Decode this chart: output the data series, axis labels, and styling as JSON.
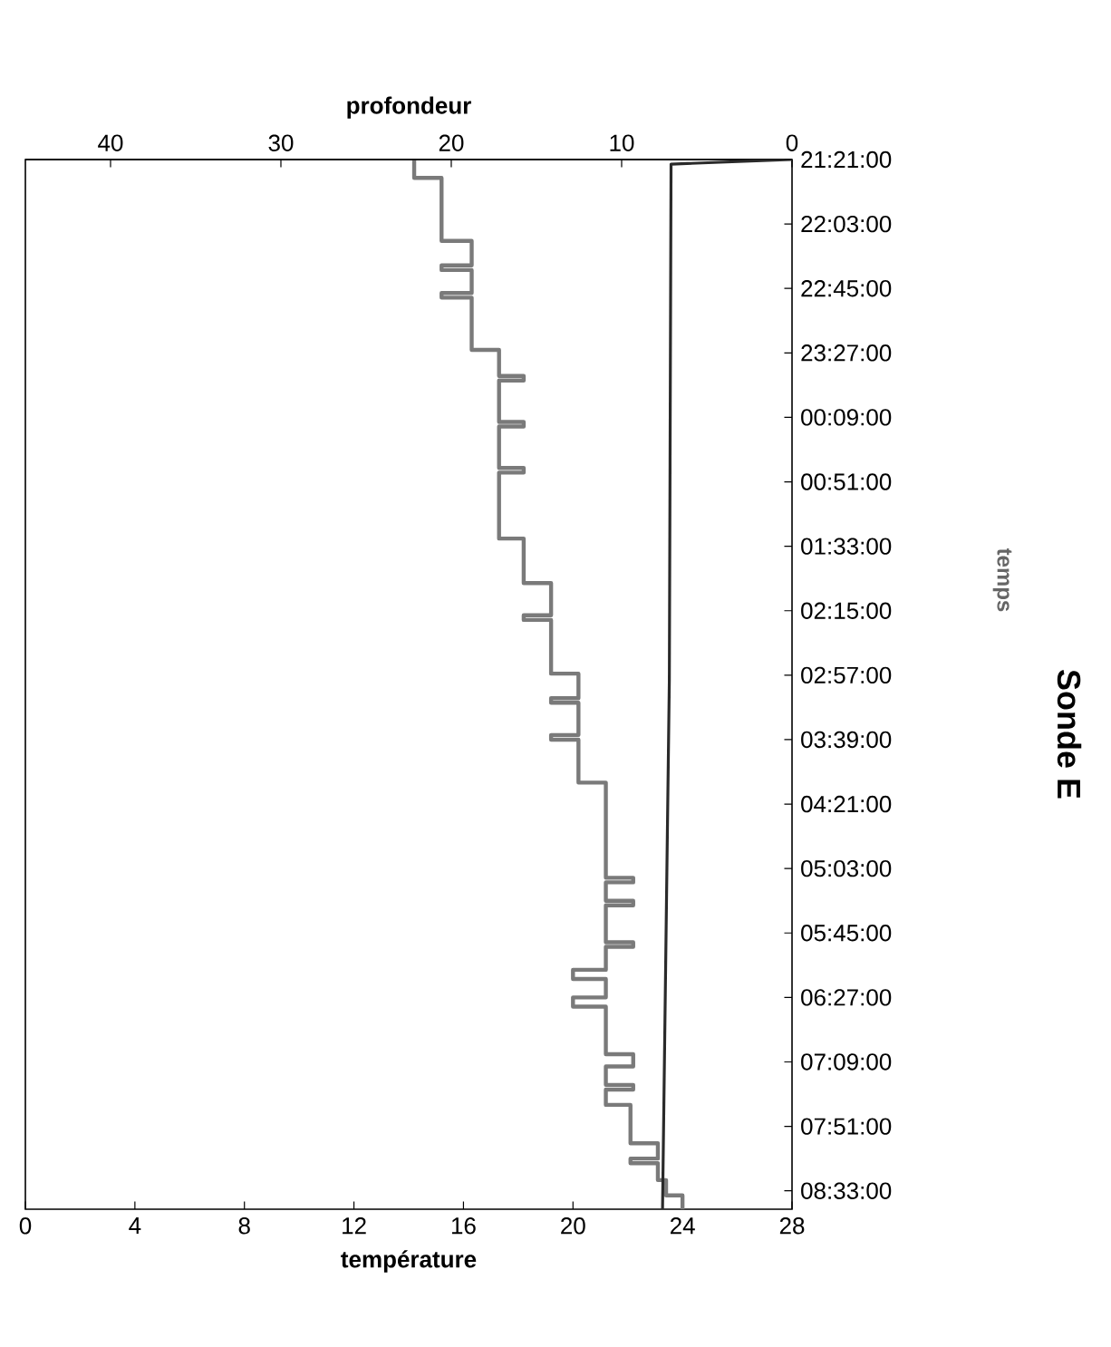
{
  "chart_data": {
    "type": "step",
    "orientation": "horizontal",
    "title": "Sonde E",
    "xlabel": "température",
    "x2label": "profondeur",
    "ylabel": "temps",
    "xlim": [
      0,
      28
    ],
    "xticks": [
      0,
      4,
      8,
      12,
      16,
      20,
      24,
      28
    ],
    "x2lim": [
      45,
      0
    ],
    "x2ticks": [
      0,
      10,
      20,
      30,
      40
    ],
    "ylim": [
      "2000-01-02T08:45:00",
      "2000-01-01T21:21:00"
    ],
    "yticks": [
      {
        "value": "2000-01-01T21:21:00",
        "label": "21:21:00"
      },
      {
        "value": "2000-01-01T22:03:00",
        "label": "22:03:00"
      },
      {
        "value": "2000-01-01T22:45:00",
        "label": "22:45:00"
      },
      {
        "value": "2000-01-01T23:27:00",
        "label": "23:27:00"
      },
      {
        "value": "2000-01-02T00:09:00",
        "label": "00:09:00"
      },
      {
        "value": "2000-01-02T00:51:00",
        "label": "00:51:00"
      },
      {
        "value": "2000-01-02T01:33:00",
        "label": "01:33:00"
      },
      {
        "value": "2000-01-02T02:15:00",
        "label": "02:15:00"
      },
      {
        "value": "2000-01-02T02:57:00",
        "label": "02:57:00"
      },
      {
        "value": "2000-01-02T03:39:00",
        "label": "03:39:00"
      },
      {
        "value": "2000-01-02T04:21:00",
        "label": "04:21:00"
      },
      {
        "value": "2000-01-02T05:03:00",
        "label": "05:03:00"
      },
      {
        "value": "2000-01-02T05:45:00",
        "label": "05:45:00"
      },
      {
        "value": "2000-01-02T06:27:00",
        "label": "06:27:00"
      },
      {
        "value": "2000-01-02T07:09:00",
        "label": "07:09:00"
      },
      {
        "value": "2000-01-02T07:51:00",
        "label": "07:51:00"
      },
      {
        "value": "2000-01-02T08:33:00",
        "label": "08:33:00"
      }
    ],
    "series": [
      {
        "color": "#7a7a7a",
        "values": [
          14.2,
          15.2,
          16.3,
          15.2,
          16.3,
          15.2,
          16.3,
          17.3,
          18.2,
          17.3,
          18.2,
          17.3,
          18.2,
          17.3,
          18.2,
          19.2,
          18.2,
          19.2,
          20.2,
          19.2,
          20.2,
          19.2,
          20.2,
          21.2,
          22.2,
          21.2,
          22.2,
          21.2,
          22.2,
          21.2,
          20.0,
          21.2,
          20.0,
          21.2,
          22.2,
          21.2,
          22.2,
          21.2,
          22.1,
          23.1,
          22.1,
          23.1,
          23.4,
          24.0,
          24.0
        ],
        "x": [
          "2000-01-01T21:21:00",
          "2000-01-01T21:33:00",
          "2000-01-01T22:14:00",
          "2000-01-01T22:30:00",
          "2000-01-01T22:33:00",
          "2000-01-01T22:48:00",
          "2000-01-01T22:51:00",
          "2000-01-01T23:25:00",
          "2000-01-01T23:42:00",
          "2000-01-01T23:45:00",
          "2000-01-02T00:12:00",
          "2000-01-02T00:15:00",
          "2000-01-02T00:42:00",
          "2000-01-02T00:45:00",
          "2000-01-02T01:28:00",
          "2000-01-02T01:57:00",
          "2000-01-02T02:18:00",
          "2000-01-02T02:21:00",
          "2000-01-02T02:56:00",
          "2000-01-02T03:12:00",
          "2000-01-02T03:15:00",
          "2000-01-02T03:36:00",
          "2000-01-02T03:39:00",
          "2000-01-02T04:07:00",
          "2000-01-02T05:09:00",
          "2000-01-02T05:12:00",
          "2000-01-02T05:24:00",
          "2000-01-02T05:27:00",
          "2000-01-02T05:51:00",
          "2000-01-02T05:54:00",
          "2000-01-02T06:09:00",
          "2000-01-02T06:15:00",
          "2000-01-02T06:27:00",
          "2000-01-02T06:33:00",
          "2000-01-02T07:04:00",
          "2000-01-02T07:12:00",
          "2000-01-02T07:24:00",
          "2000-01-02T07:27:00",
          "2000-01-02T07:37:00",
          "2000-01-02T08:02:00",
          "2000-01-02T08:12:00",
          "2000-01-02T08:15:00",
          "2000-01-02T08:26:00",
          "2000-01-02T08:36:00",
          "2000-01-02T08:45:00"
        ]
      },
      {
        "color": "#2a2a2a",
        "type": "line",
        "axis": "x2",
        "values": [
          0,
          7.1,
          7.2,
          7.6
        ],
        "x": [
          "2000-01-01T21:21:00",
          "2000-01-01T21:24:00",
          "2000-01-02T03:00:00",
          "2000-01-02T08:45:00"
        ]
      }
    ]
  }
}
